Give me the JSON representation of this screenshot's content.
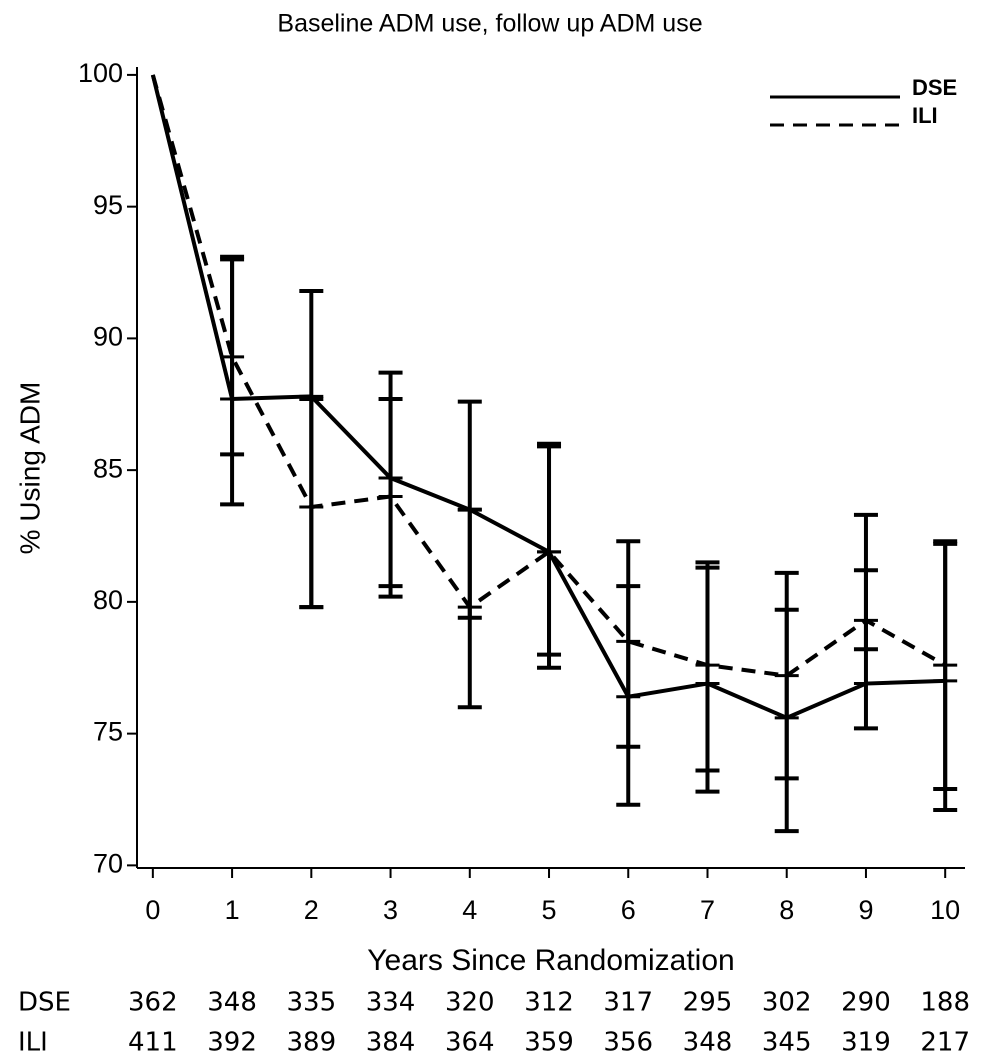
{
  "chart_data": {
    "type": "line",
    "title": "Baseline ADM use, follow up ADM use",
    "x_label": "Years Since Randomization",
    "y_label": "% Using ADM",
    "x": [
      0,
      1,
      2,
      3,
      4,
      5,
      6,
      7,
      8,
      9,
      10
    ],
    "xlim": [
      -0.2,
      10.25
    ],
    "xticks": [
      0,
      1,
      2,
      3,
      4,
      5,
      6,
      7,
      8,
      9,
      10
    ],
    "ylim": [
      69.9,
      100.3
    ],
    "yticks": [
      70,
      75,
      80,
      85,
      90,
      95,
      100
    ],
    "legend": "top-right",
    "series": [
      {
        "name": "DSE",
        "color": "#000000",
        "dash": "solid",
        "values": [
          100,
          87.7,
          87.8,
          84.7,
          83.5,
          81.9,
          76.4,
          76.9,
          75.6,
          76.9,
          77.0
        ],
        "lower": [
          null,
          83.7,
          79.8,
          80.2,
          76.0,
          77.5,
          72.3,
          72.8,
          71.3,
          75.2,
          72.1
        ],
        "upper": [
          null,
          93.1,
          91.8,
          88.7,
          87.6,
          86.0,
          82.3,
          81.5,
          81.1,
          83.3,
          82.3
        ]
      },
      {
        "name": "ILI",
        "color": "#000000",
        "dash": "dashed",
        "values": [
          100,
          89.3,
          83.6,
          84.0,
          79.8,
          81.9,
          78.5,
          77.6,
          77.2,
          79.3,
          77.6
        ],
        "lower": [
          null,
          85.6,
          79.8,
          80.6,
          79.4,
          78.0,
          74.5,
          73.6,
          73.3,
          78.2,
          72.9
        ],
        "upper": [
          null,
          93.0,
          87.7,
          87.7,
          83.5,
          85.9,
          80.6,
          81.3,
          79.7,
          81.2,
          82.2
        ]
      }
    ],
    "risk_table": [
      {
        "label": "DSE",
        "values": [
          362,
          348,
          335,
          334,
          320,
          312,
          317,
          295,
          302,
          290,
          188
        ]
      },
      {
        "label": "ILI",
        "values": [
          411,
          392,
          389,
          384,
          364,
          359,
          356,
          348,
          345,
          319,
          217
        ]
      }
    ]
  }
}
